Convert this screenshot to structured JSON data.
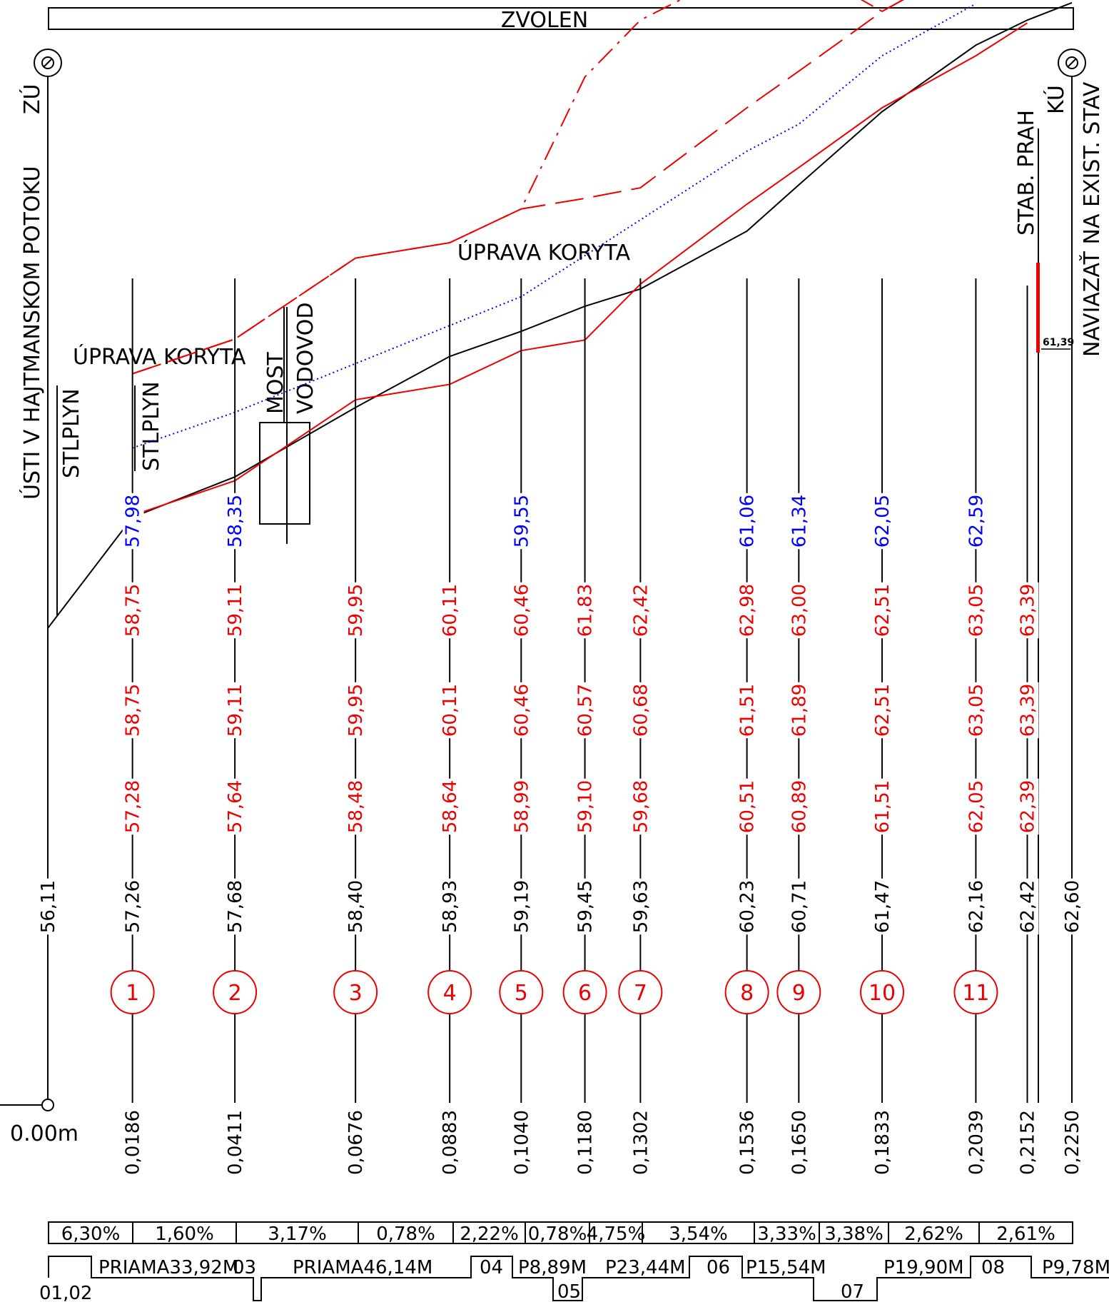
{
  "title": "ZVOLEN",
  "left_labels": {
    "zu": "ZÚ",
    "mouth": "ÚSTI V HAJTMANSKOM POTOKU",
    "stlplyn1": "STLPLYN",
    "stlplyn2": "STLPLYN",
    "uprava_left": "ÚPRAVA KORYTA",
    "most": "MOST",
    "vodovod": "VODOVOD"
  },
  "center_label": "ÚPRAVA KORYTA",
  "right_labels": {
    "ku": "KÚ",
    "note": "NAVIAZAŤ NA EXIST. STAV",
    "stab_prah": "STAB. PRAH",
    "prah_value": "61,39"
  },
  "origin_label": "0.00m",
  "colors": {
    "black": "#000000",
    "red": "#ee0000",
    "blue": "#0000ff"
  },
  "chart_data": {
    "type": "line",
    "xlabel": "",
    "ylabel": "",
    "stations": [
      {
        "chainage": "",
        "bottom": "56,11",
        "existing": "",
        "design_bottom": "",
        "design_bank": "",
        "top": "",
        "blue": "",
        "num": ""
      },
      {
        "chainage": "0,0186",
        "bottom": "57,26",
        "existing": "57,28",
        "design_bottom": "58,75",
        "design_bank": "58,75",
        "top": "",
        "blue": "57,98",
        "num": "1"
      },
      {
        "chainage": "0,0411",
        "bottom": "57,68",
        "existing": "57,64",
        "design_bottom": "59,11",
        "design_bank": "59,11",
        "top": "",
        "blue": "58,35",
        "num": "2"
      },
      {
        "chainage": "0,0676",
        "bottom": "58,40",
        "existing": "58,48",
        "design_bottom": "59,95",
        "design_bank": "59,95",
        "top": "",
        "blue": "",
        "num": "3"
      },
      {
        "chainage": "0,0883",
        "bottom": "58,93",
        "existing": "58,64",
        "design_bottom": "60,11",
        "design_bank": "60,11",
        "top": "",
        "blue": "",
        "num": "4"
      },
      {
        "chainage": "0,1040",
        "bottom": "59,19",
        "existing": "58,99",
        "design_bottom": "60,46",
        "design_bank": "60,46",
        "top": "",
        "blue": "59,55",
        "num": "5"
      },
      {
        "chainage": "0,1180",
        "bottom": "59,45",
        "existing": "59,10",
        "design_bottom": "60,57",
        "design_bank": "61,83",
        "top": "",
        "blue": "",
        "num": "6"
      },
      {
        "chainage": "0,1302",
        "bottom": "59,63",
        "existing": "59,68",
        "design_bottom": "60,68",
        "design_bank": "62,42",
        "top": "",
        "blue": "",
        "num": "7"
      },
      {
        "chainage": "0,1536",
        "bottom": "60,23",
        "existing": "60,51",
        "design_bottom": "61,51",
        "design_bank": "62,98",
        "top": "",
        "blue": "61,06",
        "num": "8"
      },
      {
        "chainage": "0,1650",
        "bottom": "60,71",
        "existing": "60,89",
        "design_bottom": "61,89",
        "design_bank": "63,00",
        "top": "",
        "blue": "61,34",
        "num": "9"
      },
      {
        "chainage": "0,1833",
        "bottom": "61,47",
        "existing": "61,51",
        "design_bottom": "62,51",
        "design_bank": "62,51",
        "top": "",
        "blue": "62,05",
        "num": "10"
      },
      {
        "chainage": "0,2039",
        "bottom": "62,16",
        "existing": "62,05",
        "design_bottom": "63,05",
        "design_bank": "63,05",
        "top": "",
        "blue": "62,59",
        "num": "11"
      },
      {
        "chainage": "0,2152",
        "bottom": "62,42",
        "existing": "62,39",
        "design_bottom": "63,39",
        "design_bank": "63,39",
        "top": "",
        "blue": "",
        "num": ""
      },
      {
        "chainage": "0,2250",
        "bottom": "62,60",
        "existing": "",
        "design_bottom": "",
        "design_bank": "",
        "top": "",
        "blue": "",
        "num": ""
      }
    ],
    "slopes": [
      "6,30%",
      "1,60%",
      "3,17%",
      "0,78%",
      "2,22%",
      "0,78%",
      "4,75%",
      "3,54%",
      "3,33%",
      "3,38%",
      "2,62%",
      "2,61%"
    ],
    "alignment": [
      {
        "label": "01,02"
      },
      {
        "label": "PRIAMA33,92M"
      },
      {
        "label": "03"
      },
      {
        "label": "PRIAMA46,14M"
      },
      {
        "label": "04"
      },
      {
        "label": "P8,89M"
      },
      {
        "label": "05"
      },
      {
        "label": "P23,44M"
      },
      {
        "label": "06"
      },
      {
        "label": "P15,54M"
      },
      {
        "label": "07"
      },
      {
        "label": "P19,90M"
      },
      {
        "label": "08"
      },
      {
        "label": "P9,78M"
      }
    ]
  }
}
